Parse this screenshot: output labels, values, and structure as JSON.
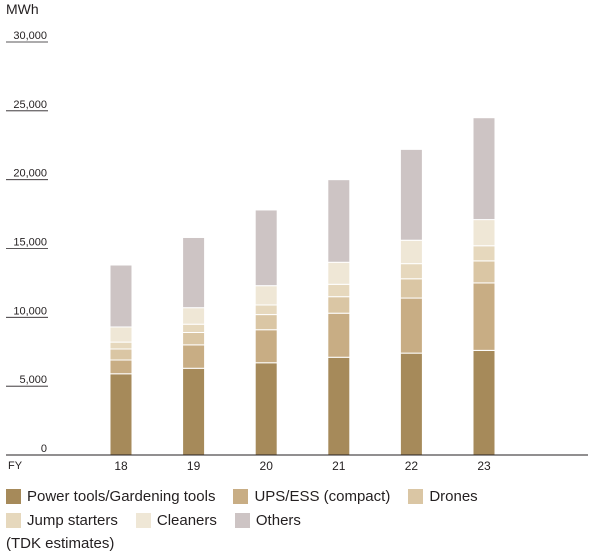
{
  "chart_data": {
    "type": "bar",
    "stacked": true,
    "unit_label": "MWh",
    "x_axis_label": "FY",
    "categories": [
      "18",
      "19",
      "20",
      "21",
      "22",
      "23"
    ],
    "ylim": [
      0,
      30000
    ],
    "yticks": [
      "0",
      "5,000",
      "10,000",
      "15,000",
      "20,000",
      "25,000",
      "30,000"
    ],
    "ytick_values": [
      0,
      5000,
      10000,
      15000,
      20000,
      25000,
      30000
    ],
    "series": [
      {
        "name": "Power tools/Gardening tools",
        "color": "#a68a5a",
        "values": [
          5900,
          6300,
          6700,
          7100,
          7400,
          7600
        ]
      },
      {
        "name": "UPS/ESS (compact)",
        "color": "#c8ad84",
        "values": [
          1000,
          1700,
          2400,
          3200,
          4000,
          4900
        ]
      },
      {
        "name": "Drones",
        "color": "#dac6a4",
        "values": [
          800,
          900,
          1100,
          1200,
          1400,
          1600
        ]
      },
      {
        "name": "Jump starters",
        "color": "#e6d8bd",
        "values": [
          500,
          600,
          700,
          900,
          1100,
          1100
        ]
      },
      {
        "name": "Cleaners",
        "color": "#efe7d6",
        "values": [
          1100,
          1200,
          1400,
          1600,
          1700,
          1900
        ]
      },
      {
        "name": "Others",
        "color": "#cdc4c4",
        "values": [
          4500,
          5100,
          5500,
          6000,
          6600,
          7400
        ]
      }
    ],
    "note": "(TDK estimates)"
  }
}
